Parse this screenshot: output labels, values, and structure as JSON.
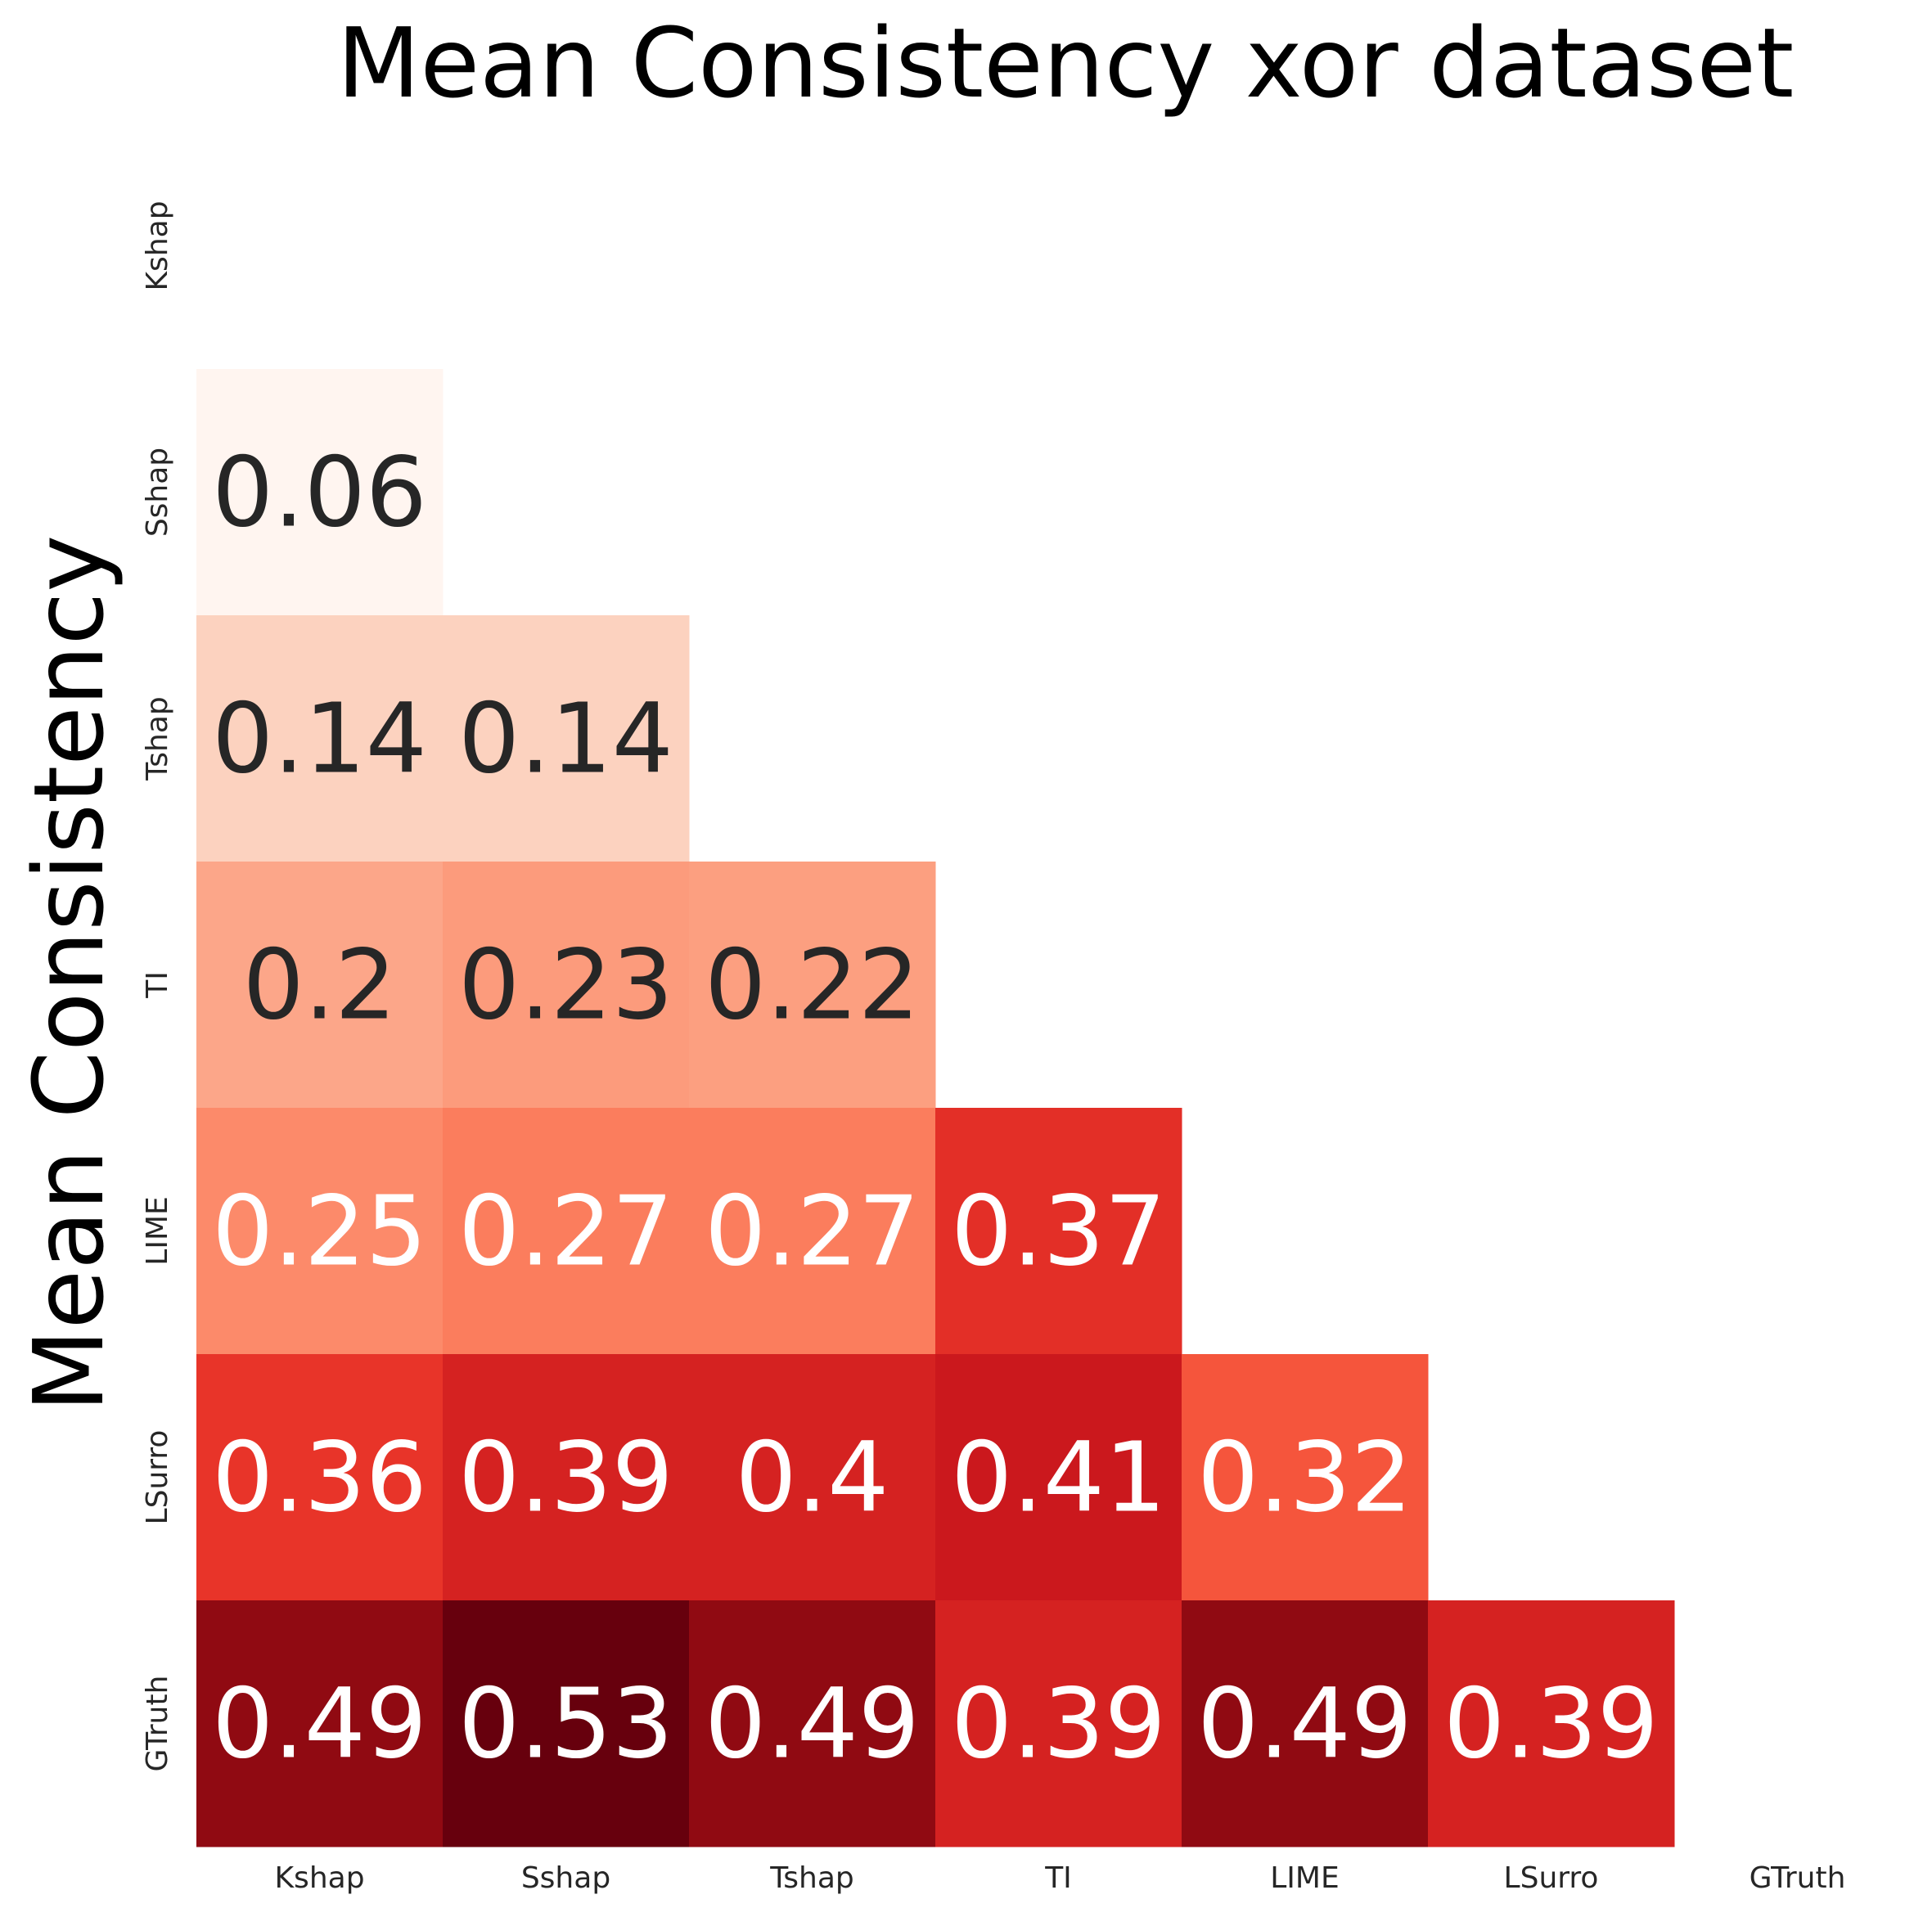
{
  "chart_data": {
    "type": "heatmap",
    "title": "Mean Consistency xor dataset",
    "ylabel": "Mean Consistency",
    "xlabel": "",
    "colormap": "Reds",
    "mask": "upper-triangle-including-diagonal",
    "row_labels": [
      "Kshap",
      "Sshap",
      "Tshap",
      "TI",
      "LIME",
      "LSurro",
      "GTruth"
    ],
    "col_labels": [
      "Kshap",
      "Sshap",
      "Tshap",
      "TI",
      "LIME",
      "LSurro",
      "GTruth"
    ],
    "values": [
      [
        null,
        null,
        null,
        null,
        null,
        null,
        null
      ],
      [
        0.06,
        null,
        null,
        null,
        null,
        null,
        null
      ],
      [
        0.14,
        0.14,
        null,
        null,
        null,
        null,
        null
      ],
      [
        0.2,
        0.23,
        0.22,
        null,
        null,
        null,
        null
      ],
      [
        0.25,
        0.27,
        0.27,
        0.37,
        null,
        null,
        null
      ],
      [
        0.36,
        0.39,
        0.4,
        0.41,
        0.32,
        null,
        null
      ],
      [
        0.49,
        0.53,
        0.49,
        0.39,
        0.49,
        0.39,
        null
      ]
    ],
    "cell_colors": [
      [
        null,
        null,
        null,
        null,
        null,
        null,
        null
      ],
      [
        "#fff5f0",
        null,
        null,
        null,
        null,
        null,
        null
      ],
      [
        "#fcd2bf",
        "#fcd2bf",
        null,
        null,
        null,
        null,
        null
      ],
      [
        "#fca689",
        "#fc9b7c",
        "#fc9f80",
        null,
        null,
        null,
        null
      ],
      [
        "#fc8a6a",
        "#fb7d5d",
        "#fb7d5d",
        "#e32f27",
        null,
        null,
        null
      ],
      [
        "#e83429",
        "#d52221",
        "#d52221",
        "#cb181d",
        "#f5553c",
        null,
        null
      ],
      [
        "#900a12",
        "#67000d",
        "#900a12",
        "#d52221",
        "#900a12",
        "#d52221",
        null
      ]
    ],
    "text_colors": {
      "dark": "#262626",
      "light": "#ffffff"
    },
    "light_text_threshold": 0.25,
    "grid": false,
    "colorbar": false
  }
}
